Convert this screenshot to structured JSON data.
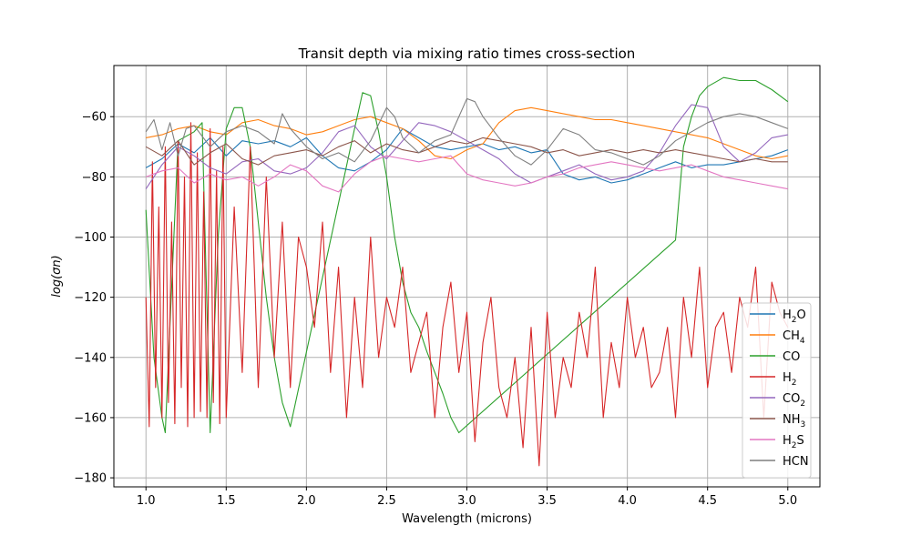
{
  "chart_data": {
    "type": "line",
    "title": "Transit depth via mixing ratio times cross-section",
    "xlabel": "Wavelength (microns)",
    "ylabel": "log(σn)",
    "xlim": [
      0.8,
      5.2
    ],
    "ylim": [
      -183,
      -43
    ],
    "xticks": [
      1.0,
      1.5,
      2.0,
      2.5,
      3.0,
      3.5,
      4.0,
      4.5,
      5.0
    ],
    "xtick_labels": [
      "1.0",
      "1.5",
      "2.0",
      "2.5",
      "3.0",
      "3.5",
      "4.0",
      "4.5",
      "5.0"
    ],
    "yticks": [
      -180,
      -160,
      -140,
      -120,
      -100,
      -80,
      -60
    ],
    "ytick_labels": [
      "−180",
      "−160",
      "−140",
      "−120",
      "−100",
      "−80",
      "−60"
    ],
    "grid": true,
    "legend_position": "lower-right",
    "series": [
      {
        "name": "H2O",
        "label_base": "H",
        "label_sub": "2",
        "label_tail": "O",
        "color": "#1f77b4",
        "x": [
          1.0,
          1.1,
          1.2,
          1.3,
          1.4,
          1.5,
          1.6,
          1.7,
          1.8,
          1.9,
          2.0,
          2.1,
          2.2,
          2.3,
          2.4,
          2.5,
          2.6,
          2.7,
          2.8,
          2.9,
          3.0,
          3.1,
          3.2,
          3.3,
          3.4,
          3.5,
          3.6,
          3.7,
          3.8,
          3.9,
          4.0,
          4.1,
          4.2,
          4.3,
          4.4,
          4.5,
          4.6,
          4.7,
          4.8,
          4.9,
          5.0
        ],
        "y": [
          -77,
          -74,
          -69,
          -72,
          -67,
          -73,
          -68,
          -69,
          -68,
          -70,
          -67,
          -73,
          -77,
          -78,
          -75,
          -71,
          -64,
          -67,
          -70,
          -71,
          -70,
          -69,
          -71,
          -70,
          -72,
          -71,
          -79,
          -81,
          -80,
          -82,
          -81,
          -79,
          -77,
          -75,
          -77,
          -76,
          -76,
          -75,
          -74,
          -73,
          -71
        ]
      },
      {
        "name": "CH4",
        "label_base": "CH",
        "label_sub": "4",
        "label_tail": "",
        "color": "#ff7f0e",
        "x": [
          1.0,
          1.1,
          1.2,
          1.3,
          1.4,
          1.5,
          1.6,
          1.7,
          1.8,
          1.9,
          2.0,
          2.1,
          2.2,
          2.3,
          2.4,
          2.5,
          2.6,
          2.7,
          2.8,
          2.9,
          3.0,
          3.1,
          3.2,
          3.3,
          3.4,
          3.5,
          3.6,
          3.7,
          3.8,
          3.9,
          4.0,
          4.1,
          4.2,
          4.3,
          4.4,
          4.5,
          4.6,
          4.7,
          4.8,
          4.9,
          5.0
        ],
        "y": [
          -67,
          -66,
          -64,
          -63,
          -65,
          -66,
          -62,
          -61,
          -63,
          -64,
          -66,
          -65,
          -63,
          -61,
          -60,
          -62,
          -64,
          -68,
          -73,
          -74,
          -71,
          -69,
          -62,
          -58,
          -57,
          -58,
          -59,
          -60,
          -61,
          -61,
          -62,
          -63,
          -64,
          -65,
          -66,
          -67,
          -69,
          -71,
          -73,
          -74,
          -73
        ]
      },
      {
        "name": "CO",
        "label_base": "CO",
        "label_sub": "",
        "label_tail": "",
        "color": "#2ca02c",
        "x": [
          1.0,
          1.05,
          1.1,
          1.12,
          1.2,
          1.3,
          1.35,
          1.4,
          1.45,
          1.5,
          1.55,
          1.6,
          1.65,
          1.7,
          1.75,
          1.8,
          1.85,
          1.9,
          2.3,
          2.35,
          2.4,
          2.45,
          2.5,
          2.55,
          2.6,
          2.65,
          2.7,
          2.75,
          2.8,
          2.85,
          2.9,
          2.95,
          4.3,
          4.35,
          4.4,
          4.45,
          4.5,
          4.6,
          4.7,
          4.8,
          4.9,
          5.0
        ],
        "y": [
          -91,
          -140,
          -160,
          -165,
          -68,
          -65,
          -62,
          -165,
          -100,
          -64,
          -57,
          -57,
          -70,
          -95,
          -120,
          -140,
          -155,
          -163,
          -64,
          -52,
          -53,
          -65,
          -80,
          -100,
          -115,
          -125,
          -130,
          -138,
          -145,
          -152,
          -160,
          -165,
          -101,
          -70,
          -60,
          -53,
          -50,
          -47,
          -48,
          -48,
          -51,
          -55
        ]
      },
      {
        "name": "H2",
        "label_base": "H",
        "label_sub": "2",
        "label_tail": "",
        "color": "#d62728",
        "x": [
          1.0,
          1.02,
          1.04,
          1.06,
          1.08,
          1.1,
          1.12,
          1.14,
          1.16,
          1.18,
          1.2,
          1.22,
          1.24,
          1.26,
          1.28,
          1.3,
          1.32,
          1.34,
          1.36,
          1.38,
          1.4,
          1.42,
          1.44,
          1.46,
          1.48,
          1.5,
          1.55,
          1.6,
          1.65,
          1.7,
          1.75,
          1.8,
          1.85,
          1.9,
          1.95,
          2.0,
          2.05,
          2.1,
          2.15,
          2.2,
          2.25,
          2.3,
          2.35,
          2.4,
          2.45,
          2.5,
          2.55,
          2.6,
          2.65,
          2.7,
          2.75,
          2.8,
          2.85,
          2.9,
          2.95,
          3.0,
          3.05,
          3.1,
          3.15,
          3.2,
          3.25,
          3.3,
          3.35,
          3.4,
          3.45,
          3.5,
          3.55,
          3.6,
          3.65,
          3.7,
          3.75,
          3.8,
          3.85,
          3.9,
          3.95,
          4.0,
          4.05,
          4.1,
          4.15,
          4.2,
          4.25,
          4.3,
          4.35,
          4.4,
          4.45,
          4.5,
          4.55,
          4.6,
          4.65,
          4.7,
          4.75,
          4.8,
          4.85,
          4.9,
          4.95,
          5.0
        ],
        "y": [
          -120,
          -163,
          -75,
          -150,
          -90,
          -160,
          -70,
          -155,
          -95,
          -162,
          -68,
          -150,
          -80,
          -163,
          -62,
          -160,
          -72,
          -158,
          -85,
          -160,
          -64,
          -155,
          -78,
          -162,
          -70,
          -160,
          -90,
          -145,
          -70,
          -150,
          -80,
          -140,
          -95,
          -150,
          -100,
          -110,
          -130,
          -95,
          -145,
          -110,
          -160,
          -120,
          -150,
          -100,
          -140,
          -120,
          -130,
          -110,
          -145,
          -135,
          -125,
          -160,
          -130,
          -115,
          -145,
          -125,
          -168,
          -135,
          -120,
          -150,
          -160,
          -140,
          -170,
          -130,
          -176,
          -125,
          -160,
          -140,
          -150,
          -125,
          -140,
          -110,
          -160,
          -135,
          -150,
          -120,
          -140,
          -130,
          -150,
          -145,
          -130,
          -160,
          -120,
          -140,
          -110,
          -150,
          -130,
          -125,
          -145,
          -120,
          -130,
          -110,
          -160,
          -115,
          -125,
          -130
        ]
      },
      {
        "name": "CO2",
        "label_base": "CO",
        "label_sub": "2",
        "label_tail": "",
        "color": "#9467bd",
        "x": [
          1.0,
          1.1,
          1.2,
          1.3,
          1.4,
          1.5,
          1.6,
          1.7,
          1.8,
          1.9,
          2.0,
          2.1,
          2.2,
          2.3,
          2.4,
          2.5,
          2.6,
          2.7,
          2.8,
          2.9,
          3.0,
          3.1,
          3.2,
          3.3,
          3.4,
          3.5,
          3.6,
          3.7,
          3.8,
          3.9,
          4.0,
          4.1,
          4.2,
          4.3,
          4.4,
          4.5,
          4.6,
          4.7,
          4.8,
          4.9,
          5.0
        ],
        "y": [
          -84,
          -76,
          -70,
          -73,
          -77,
          -79,
          -75,
          -74,
          -78,
          -79,
          -77,
          -72,
          -65,
          -63,
          -70,
          -74,
          -68,
          -62,
          -63,
          -65,
          -68,
          -71,
          -74,
          -79,
          -82,
          -80,
          -78,
          -76,
          -79,
          -81,
          -80,
          -78,
          -72,
          -63,
          -56,
          -57,
          -70,
          -75,
          -72,
          -67,
          -66
        ]
      },
      {
        "name": "NH3",
        "label_base": "NH",
        "label_sub": "3",
        "label_tail": "",
        "color": "#8c564b",
        "x": [
          1.0,
          1.1,
          1.2,
          1.3,
          1.4,
          1.5,
          1.6,
          1.7,
          1.8,
          1.9,
          2.0,
          2.1,
          2.2,
          2.3,
          2.4,
          2.5,
          2.6,
          2.7,
          2.8,
          2.9,
          3.0,
          3.1,
          3.2,
          3.3,
          3.4,
          3.5,
          3.6,
          3.7,
          3.8,
          3.9,
          4.0,
          4.1,
          4.2,
          4.3,
          4.4,
          4.5,
          4.6,
          4.7,
          4.8,
          4.9,
          5.0
        ],
        "y": [
          -70,
          -73,
          -68,
          -76,
          -72,
          -69,
          -74,
          -76,
          -73,
          -72,
          -71,
          -73,
          -70,
          -68,
          -72,
          -69,
          -71,
          -72,
          -70,
          -68,
          -69,
          -67,
          -68,
          -69,
          -70,
          -72,
          -71,
          -73,
          -72,
          -71,
          -72,
          -71,
          -72,
          -71,
          -72,
          -73,
          -74,
          -75,
          -74,
          -75,
          -75
        ]
      },
      {
        "name": "H2S",
        "label_base": "H",
        "label_sub": "2",
        "label_tail": "S",
        "color": "#e377c2",
        "x": [
          1.0,
          1.1,
          1.2,
          1.3,
          1.4,
          1.5,
          1.6,
          1.7,
          1.8,
          1.9,
          2.0,
          2.1,
          2.2,
          2.3,
          2.4,
          2.5,
          2.6,
          2.7,
          2.8,
          2.9,
          3.0,
          3.1,
          3.2,
          3.3,
          3.4,
          3.5,
          3.6,
          3.7,
          3.8,
          3.9,
          4.0,
          4.1,
          4.2,
          4.3,
          4.4,
          4.5,
          4.6,
          4.7,
          4.8,
          4.9,
          5.0
        ],
        "y": [
          -80,
          -78,
          -77,
          -82,
          -79,
          -81,
          -80,
          -83,
          -80,
          -76,
          -78,
          -83,
          -85,
          -79,
          -75,
          -73,
          -74,
          -75,
          -74,
          -73,
          -79,
          -81,
          -82,
          -83,
          -82,
          -80,
          -79,
          -77,
          -76,
          -75,
          -76,
          -77,
          -78,
          -77,
          -76,
          -78,
          -80,
          -81,
          -82,
          -83,
          -84
        ]
      },
      {
        "name": "HCN",
        "label_base": "HCN",
        "label_sub": "",
        "label_tail": "",
        "color": "#7f7f7f",
        "x": [
          1.0,
          1.05,
          1.1,
          1.15,
          1.2,
          1.25,
          1.3,
          1.4,
          1.5,
          1.6,
          1.7,
          1.8,
          1.85,
          1.9,
          2.0,
          2.1,
          2.2,
          2.3,
          2.4,
          2.5,
          2.55,
          2.6,
          2.7,
          2.8,
          2.9,
          3.0,
          3.05,
          3.1,
          3.2,
          3.3,
          3.4,
          3.5,
          3.6,
          3.7,
          3.8,
          3.9,
          4.0,
          4.1,
          4.2,
          4.3,
          4.4,
          4.5,
          4.6,
          4.7,
          4.8,
          4.9,
          5.0
        ],
        "y": [
          -65,
          -61,
          -71,
          -62,
          -73,
          -64,
          -63,
          -70,
          -65,
          -63,
          -65,
          -69,
          -59,
          -64,
          -70,
          -74,
          -72,
          -75,
          -68,
          -57,
          -60,
          -67,
          -72,
          -68,
          -66,
          -54,
          -55,
          -60,
          -67,
          -73,
          -76,
          -71,
          -64,
          -66,
          -71,
          -72,
          -74,
          -76,
          -73,
          -68,
          -65,
          -62,
          -60,
          -59,
          -60,
          -62,
          -64
        ]
      }
    ]
  }
}
